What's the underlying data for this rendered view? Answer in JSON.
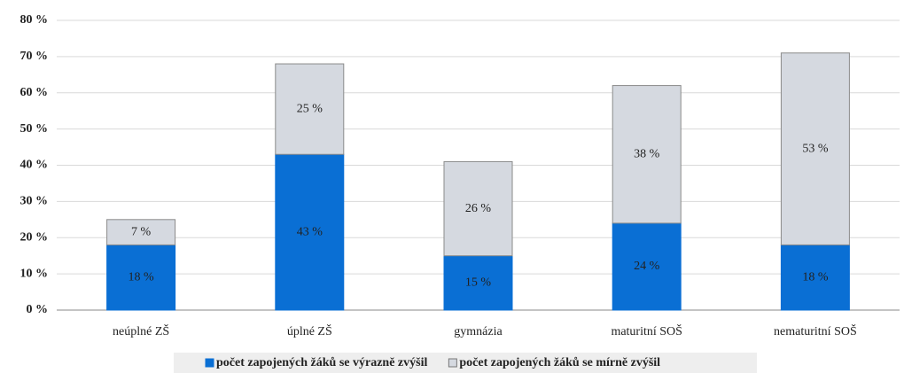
{
  "chart_data": {
    "type": "stacked_bar",
    "categories": [
      "neúplné ZŠ",
      "úplné ZŠ",
      "gymnázia",
      "maturitní SOŠ",
      "nematuritní SOŠ"
    ],
    "series": [
      {
        "name": "počet zapojených žáků se výrazně zvýšil",
        "color": "#0a6fd4",
        "values": [
          18,
          43,
          15,
          24,
          18
        ],
        "value_labels": [
          "18 %",
          "43 %",
          "15 %",
          "24 %",
          "18 %"
        ]
      },
      {
        "name": "počet zapojených žáků se mírně zvýšil",
        "color": "#d5d9e0",
        "values": [
          7,
          25,
          26,
          38,
          53
        ],
        "value_labels": [
          "7 %",
          "25 %",
          "26 %",
          "38 %",
          "53 %"
        ]
      }
    ],
    "ylim": [
      0,
      80
    ],
    "yticks": [
      {
        "value": 0,
        "label": "0 %"
      },
      {
        "value": 10,
        "label": "10 %"
      },
      {
        "value": 20,
        "label": "20 %"
      },
      {
        "value": 30,
        "label": "30 %"
      },
      {
        "value": 40,
        "label": "40 %"
      },
      {
        "value": 50,
        "label": "50 %"
      },
      {
        "value": 60,
        "label": "60 %"
      },
      {
        "value": 70,
        "label": "70 %"
      },
      {
        "value": 80,
        "label": "80 %"
      }
    ],
    "grid": true,
    "legend": "bottom"
  }
}
